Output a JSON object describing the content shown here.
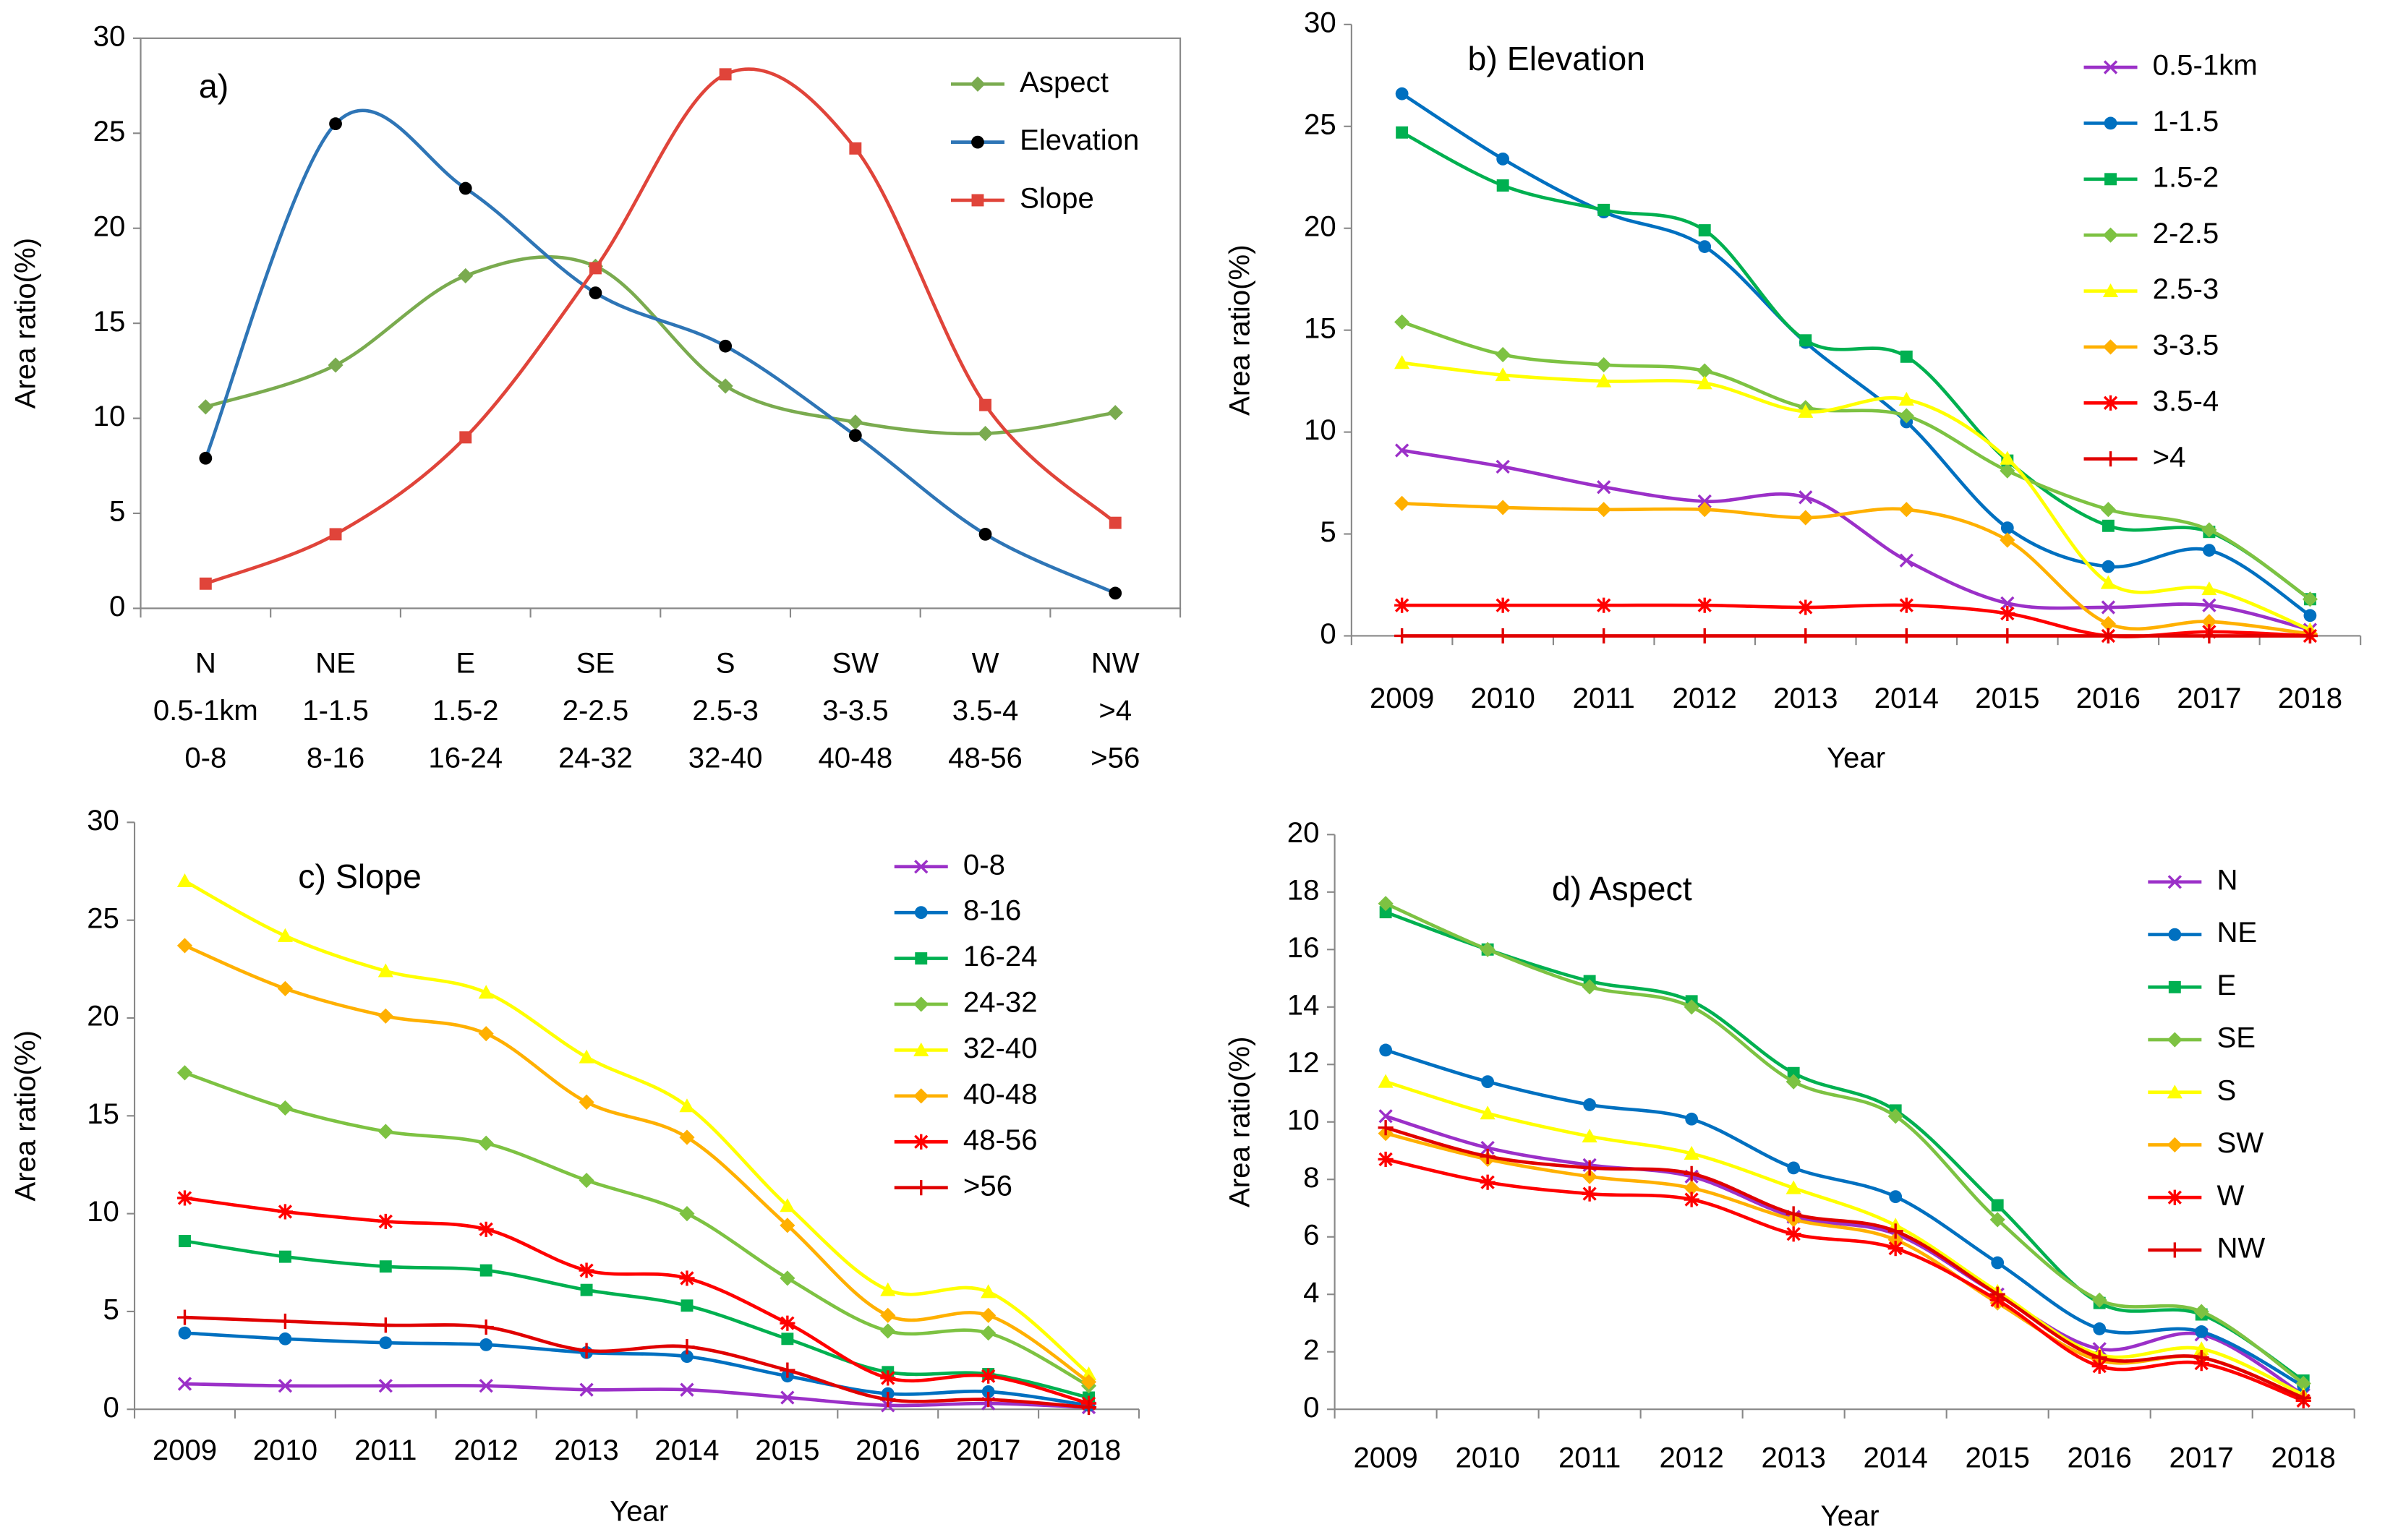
{
  "chart_data": [
    {
      "type": "line",
      "title": "a)",
      "ylabel": "Area ratio(%)",
      "frame": true,
      "categories": [
        [
          "N",
          "0.5-1km",
          "0-8"
        ],
        [
          "NE",
          "1-1.5",
          "8-16"
        ],
        [
          "E",
          "1.5-2",
          "16-24"
        ],
        [
          "SE",
          "2-2.5",
          "24-32"
        ],
        [
          "S",
          "2.5-3",
          "32-40"
        ],
        [
          "SW",
          "3-3.5",
          "40-48"
        ],
        [
          "W",
          "3.5-4",
          "48-56"
        ],
        [
          "NW",
          ">4",
          ">56"
        ]
      ],
      "ylim": [
        0,
        30
      ],
      "yticks": [
        0,
        5,
        10,
        15,
        20,
        25,
        30
      ],
      "series": [
        {
          "name": "Aspect",
          "color": "#7aab4f",
          "marker": "diamond",
          "values": [
            10.6,
            12.8,
            17.5,
            18.0,
            11.7,
            9.8,
            9.2,
            10.3
          ]
        },
        {
          "name": "Elevation",
          "color": "#2e75b6",
          "marker": "circle",
          "marker_color": "#000000",
          "values": [
            7.9,
            25.5,
            22.1,
            16.6,
            13.8,
            9.1,
            3.9,
            0.8
          ]
        },
        {
          "name": "Slope",
          "color": "#e0443a",
          "marker": "square",
          "values": [
            1.3,
            3.9,
            9.0,
            17.9,
            28.1,
            24.2,
            10.7,
            4.5
          ]
        }
      ]
    },
    {
      "type": "line",
      "title": "b)  Elevation",
      "ylabel": "Area ratio(%)",
      "xlabel": "Year",
      "frame": false,
      "categories": [
        "2009",
        "2010",
        "2011",
        "2012",
        "2013",
        "2014",
        "2015",
        "2016",
        "2017",
        "2018"
      ],
      "ylim": [
        0,
        30
      ],
      "yticks": [
        0,
        5,
        10,
        15,
        20,
        25,
        30
      ],
      "series": [
        {
          "name": "0.5-1km",
          "color": "#9b30c8",
          "marker": "x",
          "values": [
            9.1,
            8.3,
            7.3,
            6.6,
            6.8,
            3.7,
            1.6,
            1.4,
            1.5,
            0.3
          ]
        },
        {
          "name": "1-1.5",
          "color": "#0070c0",
          "marker": "circle",
          "values": [
            26.6,
            23.4,
            20.8,
            19.1,
            14.4,
            10.5,
            5.3,
            3.4,
            4.2,
            1.0
          ]
        },
        {
          "name": "1.5-2",
          "color": "#00b050",
          "marker": "square",
          "values": [
            24.7,
            22.1,
            20.9,
            19.9,
            14.5,
            13.7,
            8.6,
            5.4,
            5.1,
            1.8
          ]
        },
        {
          "name": "2-2.5",
          "color": "#7dc242",
          "marker": "diamond",
          "values": [
            15.4,
            13.8,
            13.3,
            13.0,
            11.2,
            10.8,
            8.1,
            6.2,
            5.2,
            1.8
          ]
        },
        {
          "name": "2.5-3",
          "color": "#ffff00",
          "marker": "triangle",
          "values": [
            13.4,
            12.8,
            12.5,
            12.4,
            11.0,
            11.6,
            8.7,
            2.6,
            2.3,
            0.3
          ]
        },
        {
          "name": "3-3.5",
          "color": "#ffb000",
          "marker": "diamond",
          "values": [
            6.5,
            6.3,
            6.2,
            6.2,
            5.8,
            6.2,
            4.7,
            0.6,
            0.7,
            0.1
          ]
        },
        {
          "name": "3.5-4",
          "color": "#ff0000",
          "marker": "star",
          "values": [
            1.5,
            1.5,
            1.5,
            1.5,
            1.4,
            1.5,
            1.1,
            0.0,
            0.2,
            0.0
          ]
        },
        {
          "name": ">4",
          "color": "#e00000",
          "marker": "plus",
          "values": [
            0,
            0,
            0,
            0,
            0,
            0,
            0,
            0,
            0,
            0
          ]
        }
      ]
    },
    {
      "type": "line",
      "title": "c) Slope",
      "xlabel": "Year",
      "ylabel": "Area ratio(%)",
      "frame": false,
      "categories": [
        "2009",
        "2010",
        "2011",
        "2012",
        "2013",
        "2014",
        "2015",
        "2016",
        "2017",
        "2018"
      ],
      "ylim": [
        0,
        30
      ],
      "yticks": [
        0,
        5,
        10,
        15,
        20,
        25,
        30
      ],
      "series": [
        {
          "name": "0-8",
          "color": "#9b30c8",
          "marker": "x",
          "values": [
            1.3,
            1.2,
            1.2,
            1.2,
            1.0,
            1.0,
            0.6,
            0.2,
            0.3,
            0.1
          ]
        },
        {
          "name": "8-16",
          "color": "#0070c0",
          "marker": "circle",
          "values": [
            3.9,
            3.6,
            3.4,
            3.3,
            2.9,
            2.7,
            1.7,
            0.8,
            0.9,
            0.2
          ]
        },
        {
          "name": "16-24",
          "color": "#00b050",
          "marker": "square",
          "values": [
            8.6,
            7.8,
            7.3,
            7.1,
            6.1,
            5.3,
            3.6,
            1.9,
            1.8,
            0.6
          ]
        },
        {
          "name": "24-32",
          "color": "#7dc242",
          "marker": "diamond",
          "values": [
            17.2,
            15.4,
            14.2,
            13.6,
            11.7,
            10.0,
            6.7,
            4.0,
            3.9,
            1.2
          ]
        },
        {
          "name": "32-40",
          "color": "#ffff00",
          "marker": "triangle",
          "values": [
            27.0,
            24.2,
            22.4,
            21.3,
            18.0,
            15.5,
            10.4,
            6.1,
            6.0,
            1.8
          ]
        },
        {
          "name": "40-48",
          "color": "#ffb000",
          "marker": "diamond",
          "values": [
            23.7,
            21.5,
            20.1,
            19.2,
            15.7,
            13.9,
            9.4,
            4.8,
            4.8,
            1.4
          ]
        },
        {
          "name": "48-56",
          "color": "#ff0000",
          "marker": "star",
          "values": [
            10.8,
            10.1,
            9.6,
            9.2,
            7.1,
            6.7,
            4.4,
            1.6,
            1.7,
            0.3
          ]
        },
        {
          "name": ">56",
          "color": "#e00000",
          "marker": "plus",
          "values": [
            4.7,
            4.5,
            4.3,
            4.2,
            3.0,
            3.2,
            2.0,
            0.5,
            0.5,
            0.1
          ]
        }
      ]
    },
    {
      "type": "line",
      "title": "d) Aspect",
      "xlabel": "Year",
      "ylabel": "Area ratio(%)",
      "frame": false,
      "categories": [
        "2009",
        "2010",
        "2011",
        "2012",
        "2013",
        "2014",
        "2015",
        "2016",
        "2017",
        "2018"
      ],
      "ylim": [
        0,
        20
      ],
      "yticks": [
        0,
        2,
        4,
        6,
        8,
        10,
        12,
        14,
        16,
        18,
        20
      ],
      "series": [
        {
          "name": "N",
          "color": "#9b30c8",
          "marker": "x",
          "values": [
            10.2,
            9.1,
            8.5,
            8.1,
            6.7,
            6.1,
            4.0,
            2.1,
            2.6,
            0.5
          ]
        },
        {
          "name": "NE",
          "color": "#0070c0",
          "marker": "circle",
          "values": [
            12.5,
            11.4,
            10.6,
            10.1,
            8.4,
            7.4,
            5.1,
            2.8,
            2.7,
            0.8
          ]
        },
        {
          "name": "E",
          "color": "#00b050",
          "marker": "square",
          "values": [
            17.3,
            16.0,
            14.9,
            14.2,
            11.7,
            10.4,
            7.1,
            3.7,
            3.3,
            1.0
          ]
        },
        {
          "name": "SE",
          "color": "#7dc242",
          "marker": "diamond",
          "values": [
            17.6,
            16.0,
            14.7,
            14.0,
            11.4,
            10.2,
            6.6,
            3.8,
            3.4,
            0.9
          ]
        },
        {
          "name": "S",
          "color": "#ffff00",
          "marker": "triangle",
          "values": [
            11.4,
            10.3,
            9.5,
            8.9,
            7.7,
            6.4,
            4.1,
            1.9,
            2.1,
            0.5
          ]
        },
        {
          "name": "SW",
          "color": "#ffb000",
          "marker": "diamond",
          "values": [
            9.6,
            8.7,
            8.1,
            7.7,
            6.6,
            5.9,
            3.7,
            1.7,
            1.8,
            0.4
          ]
        },
        {
          "name": "W",
          "color": "#ff0000",
          "marker": "star",
          "values": [
            8.7,
            7.9,
            7.5,
            7.3,
            6.1,
            5.6,
            3.8,
            1.5,
            1.6,
            0.3
          ]
        },
        {
          "name": "NW",
          "color": "#e00000",
          "marker": "plus",
          "values": [
            9.8,
            8.8,
            8.4,
            8.2,
            6.8,
            6.2,
            4.0,
            1.8,
            1.8,
            0.4
          ]
        }
      ]
    }
  ]
}
